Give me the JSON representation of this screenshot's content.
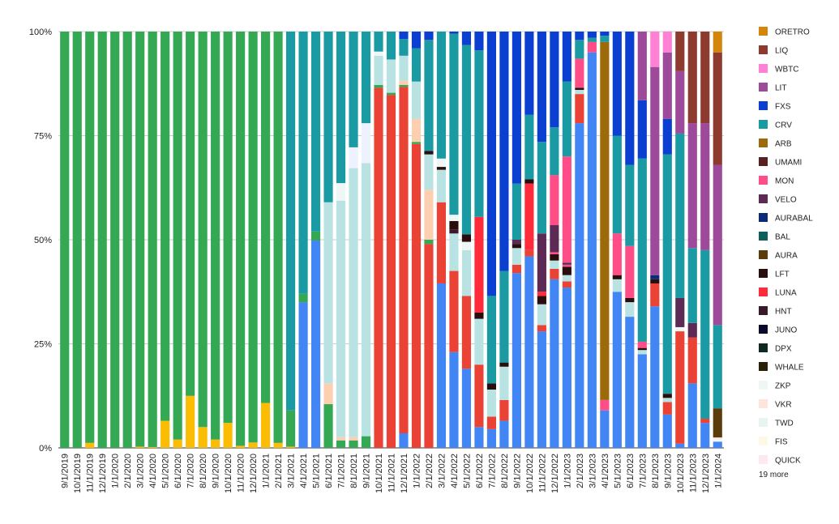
{
  "chart_data": {
    "type": "bar",
    "stacked": "percent",
    "ylim": [
      0,
      100
    ],
    "yticks": [
      "0%",
      "25%",
      "50%",
      "75%",
      "100%"
    ],
    "legend_position": "right",
    "legend_more": "19 more",
    "categories": [
      "9/1/2019",
      "10/1/2019",
      "11/1/2019",
      "12/1/2019",
      "1/1/2020",
      "2/1/2020",
      "3/1/2020",
      "4/1/2020",
      "5/1/2020",
      "6/1/2020",
      "7/1/2020",
      "8/1/2020",
      "9/1/2020",
      "10/1/2020",
      "11/1/2020",
      "12/1/2020",
      "1/1/2021",
      "2/1/2021",
      "3/1/2021",
      "4/1/2021",
      "5/1/2021",
      "6/1/2021",
      "7/1/2021",
      "8/1/2021",
      "9/1/2021",
      "10/1/2021",
      "11/1/2021",
      "12/1/2021",
      "1/1/2022",
      "2/1/2022",
      "3/1/2022",
      "4/1/2022",
      "5/1/2022",
      "6/1/2022",
      "7/1/2022",
      "8/1/2022",
      "9/1/2022",
      "10/1/2022",
      "11/1/2022",
      "12/1/2022",
      "1/1/2023",
      "2/1/2023",
      "3/1/2023",
      "4/1/2023",
      "5/1/2023",
      "6/1/2023",
      "7/1/2023",
      "8/1/2023",
      "9/1/2023",
      "10/1/2023",
      "11/1/2023",
      "12/1/2023",
      "1/1/2024"
    ],
    "legend": [
      {
        "name": "ORETRO",
        "color": "#d4860b"
      },
      {
        "name": "LIQ",
        "color": "#8e3b2f"
      },
      {
        "name": "WBTC",
        "color": "#ff80d5"
      },
      {
        "name": "LIT",
        "color": "#9e4a9a"
      },
      {
        "name": "FXS",
        "color": "#0a3fd1"
      },
      {
        "name": "CRV",
        "color": "#1a9aa3"
      },
      {
        "name": "ARB",
        "color": "#9c6a0a"
      },
      {
        "name": "UMAMI",
        "color": "#5a1f1f"
      },
      {
        "name": "MON",
        "color": "#ff4d88"
      },
      {
        "name": "VELO",
        "color": "#5c2a55"
      },
      {
        "name": "AURABAL",
        "color": "#0b2a7a"
      },
      {
        "name": "BAL",
        "color": "#0e5e5e"
      },
      {
        "name": "AURA",
        "color": "#5a3d0a"
      },
      {
        "name": "LFT",
        "color": "#2a0e0e"
      },
      {
        "name": "LUNA",
        "color": "#ff2a3a"
      },
      {
        "name": "HNT",
        "color": "#3a1a2a"
      },
      {
        "name": "JUNO",
        "color": "#0a0a2a"
      },
      {
        "name": "DPX",
        "color": "#0a2a22"
      },
      {
        "name": "WHALE",
        "color": "#2a2008"
      },
      {
        "name": "ZKP",
        "color": "#eef6f6"
      },
      {
        "name": "VKR",
        "color": "#ffe4dc"
      },
      {
        "name": "TWD",
        "color": "#e8f4ee"
      },
      {
        "name": "FIS",
        "color": "#fff8e6"
      },
      {
        "name": "QUICK",
        "color": "#ffe8ee"
      }
    ],
    "extra_colors": {
      "green": "#34a853",
      "yellow": "#fbbc04",
      "blue": "#4285f4",
      "red": "#ea4335",
      "lightcyan": "#b9e3e3",
      "peach": "#fbcfb0",
      "lavender": "#eef2ff",
      "darkgreen": "#1e6b2a"
    },
    "bars": [
      [
        [
          "green",
          100
        ]
      ],
      [
        [
          "green",
          100
        ]
      ],
      [
        [
          "yellow",
          1.2
        ],
        [
          "green",
          98.8
        ]
      ],
      [
        [
          "green",
          100
        ]
      ],
      [
        [
          "green",
          100
        ]
      ],
      [
        [
          "green",
          100
        ]
      ],
      [
        [
          "yellow",
          0.3
        ],
        [
          "green",
          99.7
        ]
      ],
      [
        [
          "yellow",
          0.2
        ],
        [
          "green",
          99.8
        ]
      ],
      [
        [
          "yellow",
          6.5
        ],
        [
          "green",
          93.5
        ]
      ],
      [
        [
          "yellow",
          2
        ],
        [
          "green",
          98
        ]
      ],
      [
        [
          "yellow",
          12.5
        ],
        [
          "green",
          87.5
        ]
      ],
      [
        [
          "yellow",
          5
        ],
        [
          "green",
          95
        ]
      ],
      [
        [
          "yellow",
          2
        ],
        [
          "green",
          98
        ]
      ],
      [
        [
          "yellow",
          6
        ],
        [
          "green",
          94
        ]
      ],
      [
        [
          "yellow",
          0.5
        ],
        [
          "green",
          99.5
        ]
      ],
      [
        [
          "yellow",
          1.3
        ],
        [
          "green",
          98.7
        ]
      ],
      [
        [
          "yellow",
          10.8
        ],
        [
          "green",
          89.2
        ]
      ],
      [
        [
          "yellow",
          1.2
        ],
        [
          "green",
          98.8
        ]
      ],
      [
        [
          "yellow",
          0.3
        ],
        [
          "green",
          8.7
        ],
        [
          "CRV",
          91
        ]
      ],
      [
        [
          "blue",
          35
        ],
        [
          "green",
          2
        ],
        [
          "CRV",
          63
        ]
      ],
      [
        [
          "blue",
          49.8
        ],
        [
          "green",
          2.2
        ],
        [
          "CRV",
          48
        ]
      ],
      [
        [
          "green",
          10.5
        ],
        [
          "peach",
          5
        ],
        [
          "lightcyan",
          43.5
        ],
        [
          "CRV",
          41
        ]
      ],
      [
        [
          "green",
          1.8
        ],
        [
          "peach",
          0.8
        ],
        [
          "lightcyan",
          56.8
        ],
        [
          "ZKP",
          4.2
        ],
        [
          "CRV",
          36.4
        ]
      ],
      [
        [
          "green",
          1.8
        ],
        [
          "peach",
          0.8
        ],
        [
          "lightcyan",
          64.6
        ],
        [
          "lavender",
          5
        ],
        [
          "CRV",
          27.8
        ]
      ],
      [
        [
          "green",
          2.8
        ],
        [
          "lightcyan",
          65.6
        ],
        [
          "lavender",
          9.6
        ],
        [
          "CRV",
          22
        ]
      ],
      [
        [
          "red",
          86.5
        ],
        [
          "green",
          0.7
        ],
        [
          "lightcyan",
          7
        ],
        [
          "ZKP",
          1
        ],
        [
          "CRV",
          4.8
        ]
      ],
      [
        [
          "red",
          84.8
        ],
        [
          "green",
          0.5
        ],
        [
          "lightcyan",
          8
        ],
        [
          "CRV",
          6.7
        ]
      ],
      [
        [
          "blue",
          3.5
        ],
        [
          "red",
          83.2
        ],
        [
          "green",
          0.5
        ],
        [
          "peach",
          1
        ],
        [
          "lightcyan",
          6
        ],
        [
          "CRV",
          4
        ],
        [
          "FXS",
          1.8
        ]
      ],
      [
        [
          "red",
          73
        ],
        [
          "green",
          0.5
        ],
        [
          "peach",
          5.5
        ],
        [
          "lightcyan",
          9
        ],
        [
          "CRV",
          8
        ],
        [
          "FXS",
          4
        ]
      ],
      [
        [
          "red",
          49
        ],
        [
          "green",
          1
        ],
        [
          "peach",
          12
        ],
        [
          "lightcyan",
          8.5
        ],
        [
          "LFT",
          0.8
        ],
        [
          "CRV",
          26.7
        ],
        [
          "FXS",
          2
        ]
      ],
      [
        [
          "blue",
          39.5
        ],
        [
          "red",
          19.5
        ],
        [
          "lightcyan",
          7.8
        ],
        [
          "LFT",
          0.7
        ],
        [
          "ZKP",
          2
        ],
        [
          "CRV",
          30.5
        ]
      ],
      [
        [
          "blue",
          23
        ],
        [
          "red",
          19.5
        ],
        [
          "lightcyan",
          9
        ],
        [
          "HNT",
          1
        ],
        [
          "LFT",
          2
        ],
        [
          "ZKP",
          1.5
        ],
        [
          "CRV",
          43.5
        ],
        [
          "FXS",
          0.5
        ]
      ],
      [
        [
          "blue",
          19
        ],
        [
          "red",
          17.5
        ],
        [
          "lightcyan",
          11
        ],
        [
          "ZKP",
          2
        ],
        [
          "LFT",
          1.8
        ],
        [
          "CRV",
          45.5
        ],
        [
          "FXS",
          3.2
        ]
      ],
      [
        [
          "blue",
          5
        ],
        [
          "red",
          15
        ],
        [
          "lightcyan",
          11
        ],
        [
          "LFT",
          1.5
        ],
        [
          "LUNA",
          23
        ],
        [
          "CRV",
          40
        ],
        [
          "FXS",
          4.5
        ]
      ],
      [
        [
          "blue",
          4.5
        ],
        [
          "red",
          3
        ],
        [
          "lightcyan",
          6.5
        ],
        [
          "LFT",
          1.5
        ],
        [
          "CRV",
          21
        ],
        [
          "FXS",
          63.5
        ]
      ],
      [
        [
          "blue",
          6.5
        ],
        [
          "red",
          5
        ],
        [
          "lightcyan",
          8
        ],
        [
          "LFT",
          1
        ],
        [
          "CRV",
          22
        ],
        [
          "FXS",
          57.5
        ]
      ],
      [
        [
          "blue",
          42
        ],
        [
          "red",
          2
        ],
        [
          "lightcyan",
          4
        ],
        [
          "LFT",
          1
        ],
        [
          "VELO",
          1
        ],
        [
          "CRV",
          13.5
        ],
        [
          "FXS",
          36.5
        ]
      ],
      [
        [
          "blue",
          46
        ],
        [
          "red",
          1.5
        ],
        [
          "LUNA",
          16
        ],
        [
          "LFT",
          1
        ],
        [
          "CRV",
          15.5
        ],
        [
          "FXS",
          20
        ]
      ],
      [
        [
          "blue",
          28
        ],
        [
          "red",
          1.5
        ],
        [
          "lightcyan",
          5
        ],
        [
          "LFT",
          2
        ],
        [
          "LUNA",
          1
        ],
        [
          "VELO",
          14
        ],
        [
          "CRV",
          22
        ],
        [
          "FXS",
          26.5
        ]
      ],
      [
        [
          "blue",
          40.5
        ],
        [
          "red",
          2.5
        ],
        [
          "lightcyan",
          2
        ],
        [
          "LFT",
          1.5
        ],
        [
          "MON",
          0.5
        ],
        [
          "VELO",
          6.5
        ],
        [
          "MON",
          12
        ],
        [
          "CRV",
          11.5
        ],
        [
          "FXS",
          23
        ]
      ],
      [
        [
          "blue",
          38.5
        ],
        [
          "red",
          1.5
        ],
        [
          "lightcyan",
          1.5
        ],
        [
          "LFT",
          2
        ],
        [
          "MON",
          0.5
        ],
        [
          "VELO",
          0.5
        ],
        [
          "MON",
          25.5
        ],
        [
          "CRV",
          18
        ],
        [
          "FXS",
          12
        ]
      ],
      [
        [
          "blue",
          78
        ],
        [
          "red",
          7
        ],
        [
          "lightcyan",
          1
        ],
        [
          "LFT",
          0.5
        ],
        [
          "MON",
          7
        ],
        [
          "CRV",
          4.5
        ],
        [
          "FXS",
          2
        ]
      ],
      [
        [
          "blue",
          95
        ],
        [
          "MON",
          2.5
        ],
        [
          "CRV",
          1
        ],
        [
          "FXS",
          1.5
        ]
      ],
      [
        [
          "blue",
          9
        ],
        [
          "MON",
          2.5
        ],
        [
          "ARB",
          86
        ],
        [
          "CRV",
          1.5
        ],
        [
          "FXS",
          1
        ]
      ],
      [
        [
          "blue",
          37.5
        ],
        [
          "lightcyan",
          3
        ],
        [
          "LFT",
          1
        ],
        [
          "MON",
          10
        ],
        [
          "CRV",
          23.5
        ],
        [
          "FXS",
          25
        ]
      ],
      [
        [
          "blue",
          31.5
        ],
        [
          "lightcyan",
          3.5
        ],
        [
          "LFT",
          1
        ],
        [
          "MON",
          12.5
        ],
        [
          "CRV",
          19.5
        ],
        [
          "FXS",
          32
        ]
      ],
      [
        [
          "blue",
          22.5
        ],
        [
          "lightcyan",
          1
        ],
        [
          "LFT",
          0.5
        ],
        [
          "MON",
          1.5
        ],
        [
          "CRV",
          44
        ],
        [
          "FXS",
          14
        ],
        [
          "LIT",
          16.5
        ]
      ],
      [
        [
          "blue",
          34
        ],
        [
          "red",
          5.5
        ],
        [
          "LFT",
          1
        ],
        [
          "AURABAL",
          1
        ],
        [
          "LIT",
          50
        ],
        [
          "WBTC",
          8.5
        ]
      ],
      [
        [
          "blue",
          8
        ],
        [
          "red",
          3
        ],
        [
          "lightcyan",
          1
        ],
        [
          "LFT",
          1
        ],
        [
          "CRV",
          57.5
        ],
        [
          "FXS",
          8.5
        ],
        [
          "LIT",
          16
        ],
        [
          "WBTC",
          5
        ]
      ],
      [
        [
          "blue",
          1
        ],
        [
          "red",
          27
        ],
        [
          "ZKP",
          1
        ],
        [
          "VELO",
          7
        ],
        [
          "CRV",
          39.5
        ],
        [
          "LIT",
          15
        ],
        [
          "LIQ",
          9.5
        ]
      ],
      [
        [
          "blue",
          15.5
        ],
        [
          "red",
          11
        ],
        [
          "VELO",
          3.5
        ],
        [
          "CRV",
          18
        ],
        [
          "LIT",
          30
        ],
        [
          "LIQ",
          22
        ]
      ],
      [
        [
          "blue",
          6
        ],
        [
          "red",
          1
        ],
        [
          "CRV",
          40.5
        ],
        [
          "LIT",
          30.5
        ],
        [
          "LIQ",
          22
        ]
      ],
      [
        [
          "blue",
          1.5
        ],
        [
          "ZKP",
          0.5
        ],
        [
          "QUICK",
          0.5
        ],
        [
          "AURA",
          7
        ],
        [
          "CRV",
          20
        ],
        [
          "LIT",
          38.5
        ],
        [
          "LIQ",
          27
        ],
        [
          "ORETRO",
          5
        ]
      ]
    ]
  }
}
